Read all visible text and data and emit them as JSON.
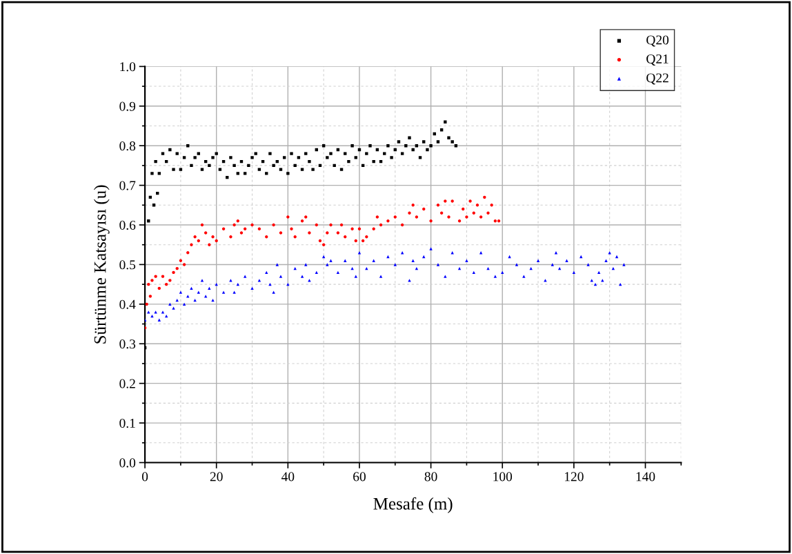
{
  "chart_data": {
    "type": "scatter",
    "xlabel": "Mesafe (m)",
    "ylabel": "Sürtünme Katsayısı (u)",
    "xlim": [
      0,
      150
    ],
    "xticks": [
      0,
      20,
      40,
      60,
      80,
      100,
      120,
      140
    ],
    "ylim": [
      0,
      1.0
    ],
    "yticks": [
      {
        "value": 0,
        "label": "0.0"
      },
      0.1,
      0.2,
      0.3,
      0.4,
      0.5,
      0.6,
      0.7,
      0.8,
      0.9,
      {
        "value": 1.0,
        "label": "1.0"
      }
    ],
    "grid": true,
    "legend": "top right",
    "series": [
      {
        "name": "Q20",
        "color": "#000000",
        "marker": "square",
        "x": [
          0,
          1,
          1.5,
          2,
          2.5,
          3,
          3.5,
          4,
          5,
          6,
          7,
          8,
          9,
          10,
          11,
          12,
          13,
          14,
          15,
          16,
          17,
          18,
          19,
          20,
          21,
          22,
          23,
          24,
          25,
          26,
          27,
          28,
          29,
          30,
          31,
          32,
          33,
          34,
          35,
          36,
          37,
          38,
          39,
          40,
          41,
          42,
          43,
          44,
          45,
          46,
          47,
          48,
          49,
          50,
          51,
          52,
          53,
          54,
          55,
          56,
          57,
          58,
          59,
          60,
          61,
          62,
          63,
          64,
          65,
          66,
          67,
          68,
          69,
          70,
          71,
          72,
          73,
          74,
          75,
          76,
          77,
          78,
          79,
          80,
          81,
          82,
          83,
          84,
          85,
          86,
          87
        ],
        "values": [
          0.29,
          0.61,
          0.67,
          0.73,
          0.65,
          0.76,
          0.68,
          0.73,
          0.78,
          0.76,
          0.79,
          0.74,
          0.78,
          0.74,
          0.77,
          0.8,
          0.75,
          0.77,
          0.78,
          0.74,
          0.76,
          0.75,
          0.77,
          0.78,
          0.74,
          0.76,
          0.72,
          0.77,
          0.75,
          0.73,
          0.76,
          0.73,
          0.75,
          0.77,
          0.78,
          0.74,
          0.76,
          0.73,
          0.78,
          0.75,
          0.76,
          0.74,
          0.77,
          0.73,
          0.78,
          0.75,
          0.77,
          0.74,
          0.78,
          0.76,
          0.74,
          0.79,
          0.75,
          0.8,
          0.77,
          0.78,
          0.75,
          0.79,
          0.74,
          0.78,
          0.76,
          0.8,
          0.77,
          0.79,
          0.75,
          0.78,
          0.8,
          0.76,
          0.79,
          0.76,
          0.78,
          0.8,
          0.77,
          0.79,
          0.81,
          0.78,
          0.8,
          0.82,
          0.79,
          0.8,
          0.77,
          0.81,
          0.79,
          0.8,
          0.83,
          0.81,
          0.84,
          0.86,
          0.82,
          0.81,
          0.8
        ]
      },
      {
        "name": "Q21",
        "color": "#ff0000",
        "marker": "circle",
        "x": [
          0,
          0.5,
          1,
          1.5,
          2,
          3,
          4,
          5,
          6,
          7,
          8,
          9,
          10,
          11,
          12,
          13,
          14,
          15,
          16,
          17,
          18,
          19,
          20,
          22,
          24,
          25,
          26,
          27,
          28,
          30,
          32,
          34,
          36,
          38,
          40,
          41,
          42,
          44,
          45,
          46,
          48,
          49,
          50,
          51,
          52,
          54,
          55,
          56,
          58,
          59,
          60,
          61,
          62,
          64,
          65,
          66,
          68,
          70,
          72,
          74,
          75,
          76,
          78,
          80,
          82,
          83,
          84,
          85,
          86,
          88,
          89,
          90,
          91,
          92,
          93,
          94,
          95,
          96,
          97,
          98,
          99
        ],
        "values": [
          0.34,
          0.4,
          0.45,
          0.42,
          0.46,
          0.47,
          0.44,
          0.47,
          0.45,
          0.46,
          0.48,
          0.49,
          0.51,
          0.5,
          0.53,
          0.55,
          0.57,
          0.56,
          0.6,
          0.58,
          0.55,
          0.57,
          0.56,
          0.59,
          0.57,
          0.6,
          0.61,
          0.58,
          0.59,
          0.6,
          0.59,
          0.57,
          0.6,
          0.58,
          0.62,
          0.59,
          0.57,
          0.61,
          0.62,
          0.58,
          0.6,
          0.56,
          0.55,
          0.58,
          0.6,
          0.58,
          0.6,
          0.57,
          0.59,
          0.56,
          0.59,
          0.56,
          0.57,
          0.59,
          0.62,
          0.6,
          0.61,
          0.62,
          0.6,
          0.63,
          0.65,
          0.62,
          0.64,
          0.61,
          0.65,
          0.63,
          0.66,
          0.62,
          0.66,
          0.61,
          0.64,
          0.62,
          0.66,
          0.63,
          0.65,
          0.62,
          0.67,
          0.63,
          0.65,
          0.61,
          0.61
        ]
      },
      {
        "name": "Q22",
        "color": "#0000ff",
        "marker": "triangle",
        "x": [
          0,
          1,
          2,
          3,
          4,
          5,
          6,
          7,
          8,
          9,
          10,
          11,
          12,
          13,
          14,
          15,
          16,
          17,
          18,
          19,
          20,
          22,
          24,
          25,
          26,
          28,
          30,
          32,
          34,
          35,
          36,
          37,
          38,
          40,
          42,
          44,
          45,
          46,
          48,
          50,
          51,
          52,
          54,
          56,
          58,
          59,
          60,
          62,
          64,
          66,
          68,
          70,
          72,
          74,
          75,
          76,
          78,
          80,
          82,
          84,
          86,
          88,
          90,
          92,
          94,
          96,
          98,
          100,
          102,
          104,
          106,
          108,
          110,
          112,
          114,
          115,
          116,
          118,
          120,
          122,
          124,
          125,
          126,
          127,
          128,
          129,
          130,
          131,
          132,
          133,
          134
        ],
        "values": [
          0.36,
          0.38,
          0.37,
          0.38,
          0.36,
          0.38,
          0.37,
          0.4,
          0.39,
          0.41,
          0.43,
          0.4,
          0.42,
          0.44,
          0.41,
          0.43,
          0.46,
          0.42,
          0.44,
          0.41,
          0.45,
          0.43,
          0.46,
          0.43,
          0.45,
          0.47,
          0.44,
          0.46,
          0.48,
          0.45,
          0.43,
          0.5,
          0.47,
          0.45,
          0.49,
          0.47,
          0.5,
          0.46,
          0.48,
          0.52,
          0.5,
          0.51,
          0.48,
          0.51,
          0.49,
          0.47,
          0.53,
          0.49,
          0.51,
          0.47,
          0.52,
          0.5,
          0.53,
          0.46,
          0.51,
          0.49,
          0.52,
          0.54,
          0.5,
          0.47,
          0.53,
          0.49,
          0.51,
          0.48,
          0.53,
          0.49,
          0.47,
          0.48,
          0.52,
          0.5,
          0.47,
          0.49,
          0.51,
          0.46,
          0.5,
          0.53,
          0.49,
          0.51,
          0.48,
          0.52,
          0.5,
          0.46,
          0.45,
          0.48,
          0.46,
          0.51,
          0.53,
          0.49,
          0.52,
          0.45,
          0.5
        ]
      }
    ]
  }
}
